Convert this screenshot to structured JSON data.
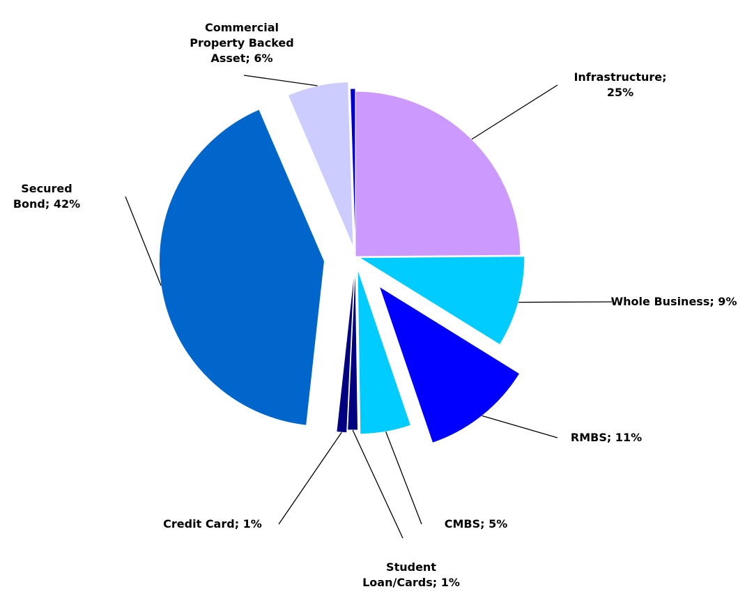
{
  "chart_data": {
    "type": "pie",
    "values": [
      25,
      9,
      11,
      5,
      1,
      1,
      42,
      6,
      0.5
    ],
    "value_labels": [
      "Infrastructure; 25%",
      "Whole Business; 9%",
      "RMBS; 11%",
      "CMBS; 5%",
      "Student Loan/Cards; 1%",
      "Credit Card; 1%",
      "Secured Bond; 42%",
      "Commercial Property Backed Asset; 6%",
      null
    ],
    "colors": [
      "#cc99ff",
      "#00ccff",
      "#0000ff",
      "#00ccff",
      "#000080",
      "#000080",
      "#0066cc",
      "#ccccff",
      "#0000cc"
    ]
  }
}
